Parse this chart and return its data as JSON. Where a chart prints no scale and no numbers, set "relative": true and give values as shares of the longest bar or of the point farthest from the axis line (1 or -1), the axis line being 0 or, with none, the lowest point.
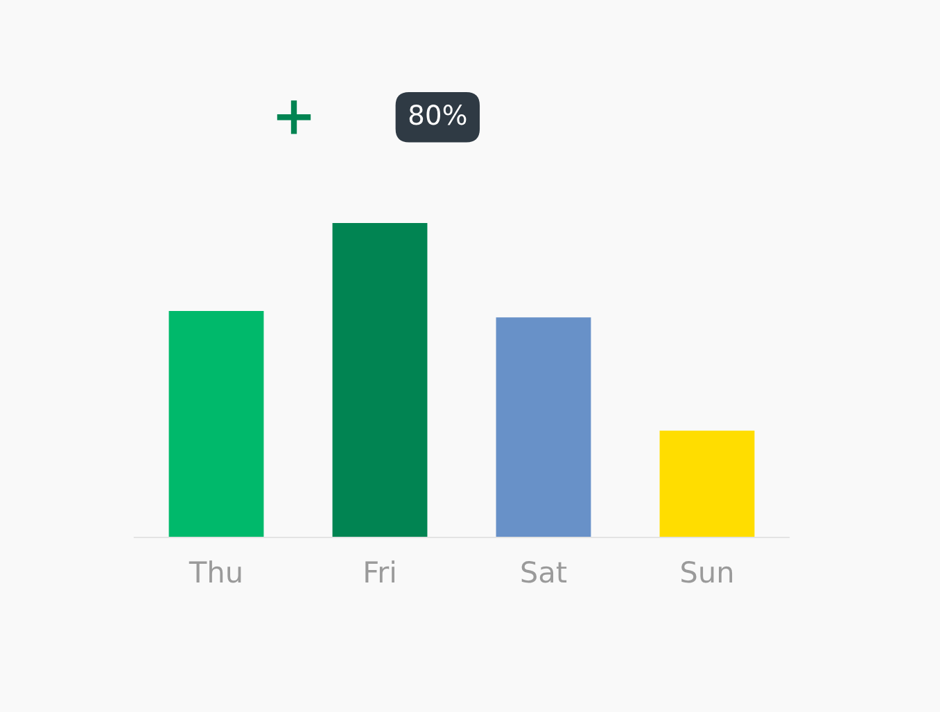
{
  "chart_data": {
    "type": "bar",
    "relative": true,
    "categories": [
      "Thu",
      "Fri",
      "Sat",
      "Sun"
    ],
    "values": [
      0.72,
      1,
      0.7,
      0.34
    ],
    "colors": [
      "#00b96b",
      "#018452",
      "#6891c8",
      "#ffdd00"
    ],
    "annotations": [
      "80%"
    ],
    "grid": false,
    "legend": false
  }
}
